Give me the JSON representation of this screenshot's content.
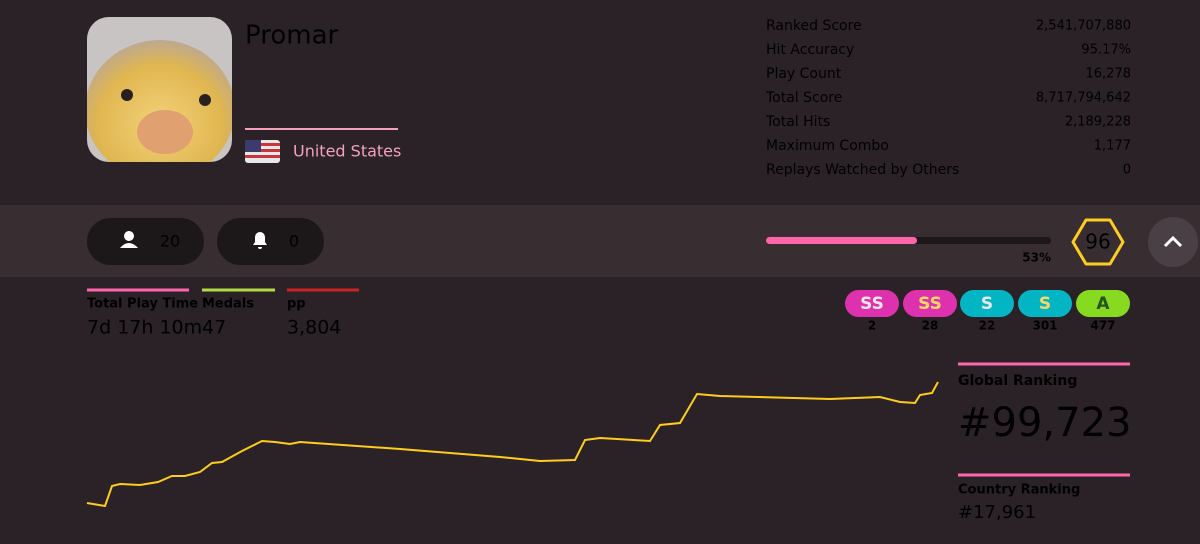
{
  "profile": {
    "username": "Promar",
    "country": "United States",
    "stats": [
      {
        "label": "Ranked Score",
        "value": "2,541,707,880"
      },
      {
        "label": "Hit Accuracy",
        "value": "95.17%"
      },
      {
        "label": "Play Count",
        "value": "16,278"
      },
      {
        "label": "Total Score",
        "value": "8,717,794,642"
      },
      {
        "label": "Total Hits",
        "value": "2,189,228"
      },
      {
        "label": "Maximum Combo",
        "value": "1,177"
      },
      {
        "label": "Replays Watched by Others",
        "value": "0"
      }
    ],
    "followers": "20",
    "notifications": "0",
    "level_progress": {
      "value": 53,
      "label": "53%"
    },
    "level": "96",
    "summary": [
      {
        "label": "Total Play Time",
        "value": "7d 17h 10m",
        "color": "#ff66aa"
      },
      {
        "label": "Medals",
        "value": "47",
        "color": "#b3d944"
      },
      {
        "label": "pp",
        "value": "3,804",
        "color": "#cc2222"
      }
    ],
    "grades": [
      {
        "label": "SS",
        "count": "2",
        "bg": "#de31ae",
        "fg": "#e8e8e8"
      },
      {
        "label": "SS",
        "count": "28",
        "bg": "#de31ae",
        "fg": "#ffd966"
      },
      {
        "label": "S",
        "count": "22",
        "bg": "#02b5c3",
        "fg": "#e8e8e8"
      },
      {
        "label": "S",
        "count": "301",
        "bg": "#02b5c3",
        "fg": "#ffd966"
      },
      {
        "label": "A",
        "count": "477",
        "bg": "#88da20",
        "fg": "#275227"
      }
    ],
    "global_ranking": {
      "label": "Global Ranking",
      "value": "#99,723"
    },
    "country_ranking": {
      "label": "Country Ranking",
      "value": "#17,961"
    }
  }
}
